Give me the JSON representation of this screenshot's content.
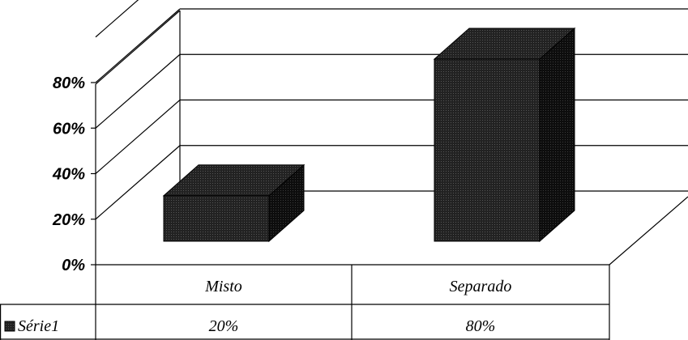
{
  "chart_data": {
    "type": "bar",
    "categories": [
      "Misto",
      "Separado"
    ],
    "series": [
      {
        "name": "Série1",
        "values": [
          0.2,
          0.8
        ],
        "labels": [
          "20%",
          "80%"
        ],
        "color": "#1a1a1a"
      }
    ],
    "ylim": [
      0,
      1
    ],
    "yticks": [
      {
        "value": 0,
        "label": "0%"
      },
      {
        "value": 0.2,
        "label": "20%"
      },
      {
        "value": 0.4,
        "label": "40%"
      },
      {
        "value": 0.6,
        "label": "60%"
      },
      {
        "value": 0.8,
        "label": "80%"
      }
    ],
    "title": "",
    "xlabel": "",
    "ylabel": "",
    "grid": true,
    "legend": "data-table-left",
    "style": "3d-column-with-data-table"
  }
}
